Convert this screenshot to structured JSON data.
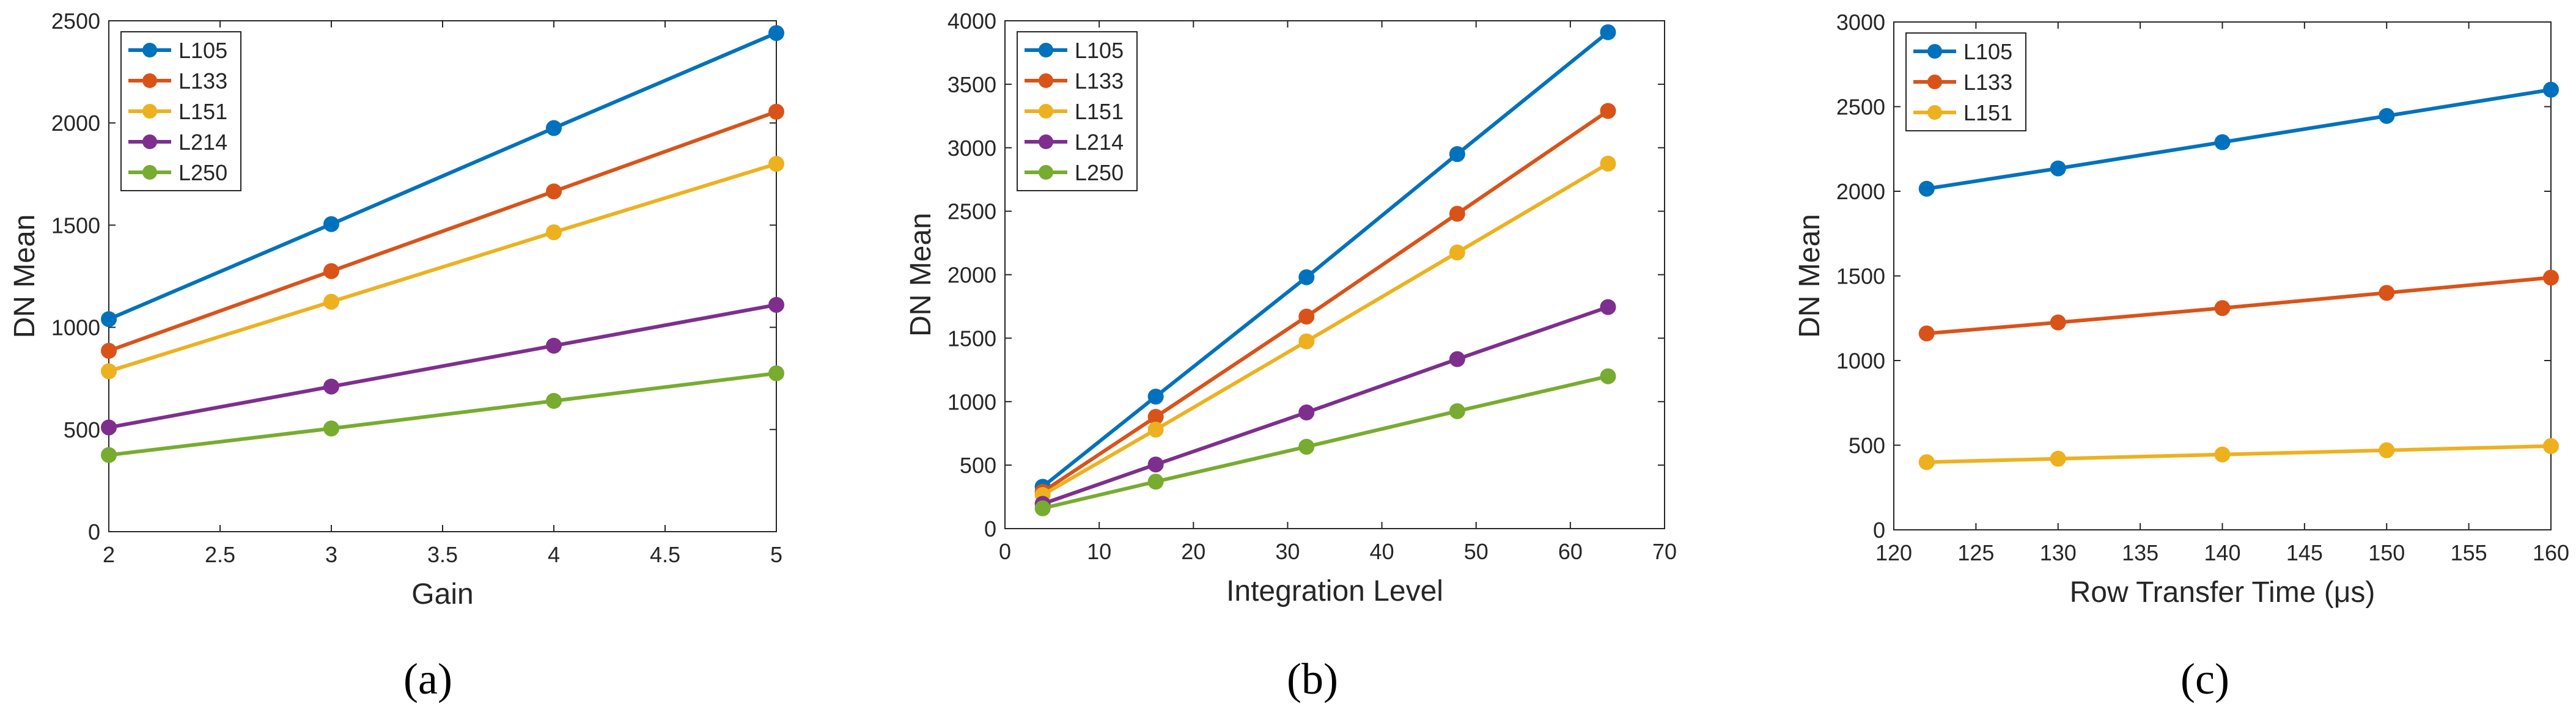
{
  "colors": {
    "L105": "#0072BD",
    "L133": "#D95319",
    "L151": "#EDB120",
    "L214": "#7E2F8E",
    "L250": "#77AC30",
    "axis": "#262626"
  },
  "captions": [
    "(a)",
    "(b)",
    "(c)"
  ],
  "chart_data": [
    {
      "type": "line",
      "title": "",
      "xlabel": "Gain",
      "ylabel": "DN Mean",
      "xlim": [
        2,
        5
      ],
      "ylim": [
        0,
        2500
      ],
      "xticks": [
        2,
        2.5,
        3,
        3.5,
        4,
        4.5,
        5
      ],
      "xtick_labels": [
        "2",
        "2.5",
        "3",
        "3.5",
        "4",
        "4.5",
        "5"
      ],
      "yticks": [
        0,
        500,
        1000,
        1500,
        2000,
        2500
      ],
      "ytick_labels": [
        "0",
        "500",
        "1000",
        "1500",
        "2000",
        "2500"
      ],
      "legend": "top-left",
      "x": [
        2,
        3,
        4,
        5
      ],
      "series": [
        {
          "name": "L105",
          "values": [
            1040,
            1505,
            1975,
            2440
          ]
        },
        {
          "name": "L133",
          "values": [
            885,
            1275,
            1665,
            2055
          ]
        },
        {
          "name": "L151",
          "values": [
            785,
            1125,
            1465,
            1800
          ]
        },
        {
          "name": "L214",
          "values": [
            510,
            710,
            910,
            1110
          ]
        },
        {
          "name": "L250",
          "values": [
            375,
            505,
            640,
            775
          ]
        }
      ]
    },
    {
      "type": "line",
      "title": "",
      "xlabel": "Integration Level",
      "ylabel": "DN Mean",
      "xlim": [
        0,
        70
      ],
      "ylim": [
        0,
        4000
      ],
      "xticks": [
        0,
        10,
        20,
        30,
        40,
        50,
        60,
        70
      ],
      "xtick_labels": [
        "0",
        "10",
        "20",
        "30",
        "40",
        "50",
        "60",
        "70"
      ],
      "yticks": [
        0,
        500,
        1000,
        1500,
        2000,
        2500,
        3000,
        3500,
        4000
      ],
      "ytick_labels": [
        "0",
        "500",
        "1000",
        "1500",
        "2000",
        "2500",
        "3000",
        "3500",
        "4000"
      ],
      "legend": "top-left",
      "x": [
        4,
        16,
        32,
        48,
        64
      ],
      "series": [
        {
          "name": "L105",
          "values": [
            330,
            1040,
            1980,
            2950,
            3910
          ]
        },
        {
          "name": "L133",
          "values": [
            290,
            880,
            1670,
            2480,
            3290
          ]
        },
        {
          "name": "L151",
          "values": [
            265,
            780,
            1475,
            2175,
            2875
          ]
        },
        {
          "name": "L214",
          "values": [
            195,
            505,
            915,
            1335,
            1745
          ]
        },
        {
          "name": "L250",
          "values": [
            160,
            370,
            645,
            925,
            1200
          ]
        }
      ]
    },
    {
      "type": "line",
      "title": "",
      "xlabel": "Row Transfer Time (μs)",
      "ylabel": "DN Mean",
      "xlim": [
        120,
        160
      ],
      "ylim": [
        0,
        3000
      ],
      "xticks": [
        120,
        125,
        130,
        135,
        140,
        145,
        150,
        155,
        160
      ],
      "xtick_labels": [
        "120",
        "125",
        "130",
        "135",
        "140",
        "145",
        "150",
        "155",
        "160"
      ],
      "yticks": [
        0,
        500,
        1000,
        1500,
        2000,
        2500,
        3000
      ],
      "ytick_labels": [
        "0",
        "500",
        "1000",
        "1500",
        "2000",
        "2500",
        "3000"
      ],
      "legend": "top-left",
      "x": [
        122,
        130,
        140,
        150,
        160
      ],
      "series": [
        {
          "name": "L105",
          "values": [
            2015,
            2135,
            2290,
            2445,
            2600
          ]
        },
        {
          "name": "L133",
          "values": [
            1160,
            1225,
            1310,
            1400,
            1490
          ]
        },
        {
          "name": "L151",
          "values": [
            400,
            420,
            445,
            470,
            495
          ]
        }
      ]
    }
  ]
}
